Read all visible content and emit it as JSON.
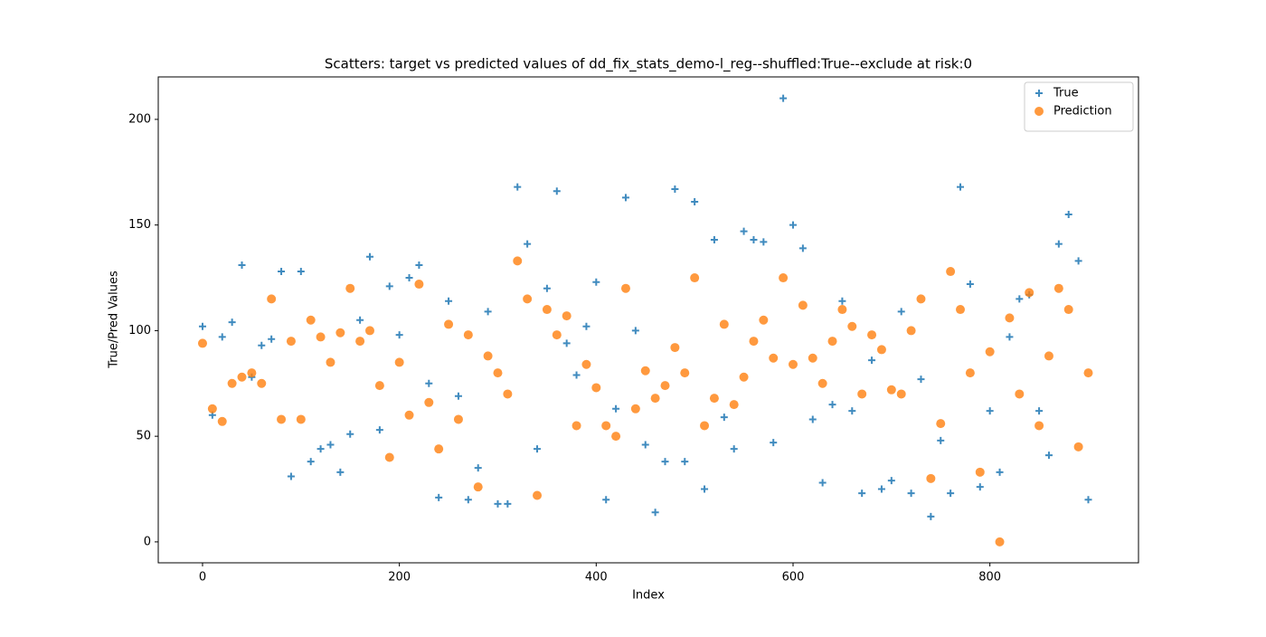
{
  "chart_data": {
    "type": "scatter",
    "title": "Scatters: target vs predicted values of dd_fix_stats_demo-l_reg--shuffled:True--exclude at risk:0",
    "x_label": "Index",
    "y_label": "True/Pred Values",
    "x": [
      0,
      10,
      20,
      30,
      40,
      50,
      60,
      70,
      80,
      90,
      100,
      110,
      120,
      130,
      140,
      150,
      160,
      170,
      180,
      190,
      200,
      210,
      220,
      230,
      240,
      250,
      260,
      270,
      280,
      290,
      300,
      310,
      320,
      330,
      340,
      350,
      360,
      370,
      380,
      390,
      400,
      410,
      420,
      430,
      440,
      450,
      460,
      470,
      480,
      490,
      500,
      510,
      520,
      530,
      540,
      550,
      560,
      570,
      580,
      590,
      600,
      610,
      620,
      630,
      640,
      650,
      660,
      670,
      680,
      690,
      700,
      710,
      720,
      730,
      740,
      750,
      760,
      770,
      780,
      790,
      800,
      810,
      820,
      830,
      840,
      850,
      860,
      870,
      880,
      890,
      900
    ],
    "series": [
      {
        "name": "True",
        "color": "#1f77b4",
        "marker": "plus",
        "values": [
          102,
          60,
          97,
          104,
          131,
          78,
          93,
          96,
          128,
          31,
          128,
          38,
          44,
          46,
          33,
          51,
          105,
          135,
          53,
          121,
          98,
          125,
          131,
          75,
          21,
          114,
          69,
          20,
          35,
          109,
          18,
          18,
          168,
          141,
          44,
          120,
          166,
          94,
          79,
          102,
          123,
          20,
          63,
          163,
          100,
          46,
          14,
          38,
          167,
          38,
          161,
          25,
          143,
          59,
          44,
          147,
          143,
          142,
          47,
          210,
          150,
          139,
          58,
          28,
          65,
          114,
          62,
          23,
          86,
          25,
          29,
          109,
          23,
          77,
          12,
          48,
          23,
          168,
          122,
          26,
          62,
          33,
          97,
          115,
          117,
          62,
          41,
          141,
          155,
          133,
          20
        ]
      },
      {
        "name": "Prediction",
        "color": "#ff7f0e",
        "marker": "circle",
        "values": [
          94,
          63,
          57,
          75,
          78,
          80,
          75,
          115,
          58,
          95,
          58,
          105,
          97,
          85,
          99,
          120,
          95,
          100,
          74,
          40,
          85,
          60,
          122,
          66,
          44,
          103,
          58,
          98,
          26,
          88,
          80,
          70,
          133,
          115,
          22,
          110,
          98,
          107,
          55,
          84,
          73,
          55,
          50,
          120,
          63,
          81,
          68,
          74,
          92,
          80,
          125,
          55,
          68,
          103,
          65,
          78,
          95,
          105,
          87,
          125,
          84,
          112,
          87,
          75,
          95,
          110,
          102,
          70,
          98,
          91,
          72,
          70,
          100,
          115,
          30,
          56,
          128,
          110,
          80,
          33,
          90,
          0,
          106,
          70,
          118,
          55,
          88,
          120,
          110,
          45,
          80
        ]
      }
    ],
    "xlim": [
      -45,
      951
    ],
    "ylim": [
      -9.9,
      220.1
    ],
    "xticks": [
      0,
      200,
      400,
      600,
      800
    ],
    "yticks": [
      0,
      50,
      100,
      150,
      200
    ],
    "grid": false,
    "legend": "upper right"
  }
}
